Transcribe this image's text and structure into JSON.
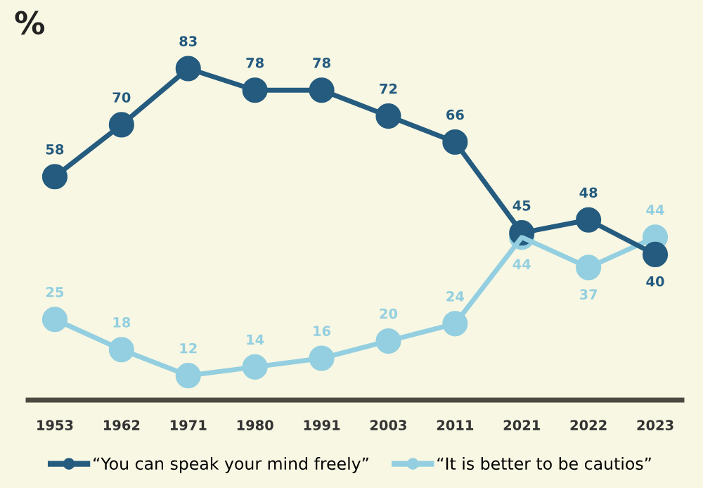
{
  "chart_data": {
    "type": "line",
    "title": "%",
    "categories": [
      "1953",
      "1962",
      "1971",
      "1980",
      "1991",
      "2003",
      "2011",
      "2021",
      "2022",
      "2023"
    ],
    "series": [
      {
        "name": "“You can speak your mind freely”",
        "color": "#245b7f",
        "values": [
          58,
          70,
          83,
          78,
          78,
          72,
          66,
          45,
          48,
          40
        ]
      },
      {
        "name": "“It is better to be cautios”",
        "color": "#93cfe0",
        "values": [
          25,
          18,
          12,
          14,
          16,
          20,
          24,
          44,
          37,
          44
        ]
      }
    ],
    "data_labels": true,
    "marker": "circle",
    "line_style": "solid",
    "grid": false,
    "legend": "bottom"
  }
}
